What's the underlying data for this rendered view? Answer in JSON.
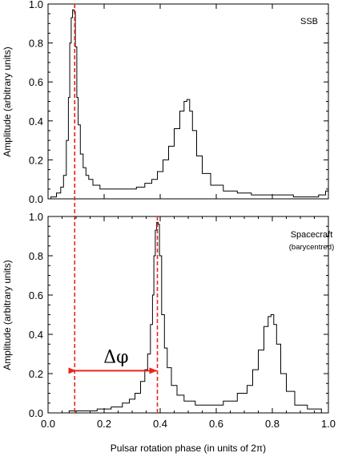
{
  "chart_data": [
    {
      "type": "line",
      "panel": "top",
      "annotation": "SSB",
      "ylabel": "Amplitude (arbitrary units)",
      "xlim": [
        0.0,
        1.0
      ],
      "ylim": [
        0.0,
        1.0
      ],
      "y_ticks": [
        "0.0",
        "0.2",
        "0.4",
        "0.6",
        "0.8",
        "1.0"
      ],
      "series": [
        {
          "x": [
            0.0,
            0.02,
            0.04,
            0.05,
            0.06,
            0.07,
            0.075,
            0.08,
            0.085,
            0.09,
            0.095,
            0.1,
            0.105,
            0.11,
            0.12,
            0.13,
            0.14,
            0.15,
            0.17,
            0.2,
            0.25,
            0.3,
            0.33,
            0.36,
            0.38,
            0.4,
            0.42,
            0.44,
            0.46,
            0.48,
            0.49,
            0.5,
            0.51,
            0.52,
            0.54,
            0.56,
            0.6,
            0.65,
            0.7,
            0.75,
            0.8,
            0.85,
            0.9,
            0.95,
            0.98,
            1.0
          ],
          "y": [
            0.0,
            0.01,
            0.03,
            0.06,
            0.12,
            0.3,
            0.52,
            0.8,
            0.93,
            0.97,
            0.96,
            0.78,
            0.52,
            0.38,
            0.23,
            0.16,
            0.12,
            0.1,
            0.07,
            0.05,
            0.05,
            0.05,
            0.06,
            0.08,
            0.1,
            0.14,
            0.2,
            0.27,
            0.36,
            0.45,
            0.5,
            0.51,
            0.45,
            0.35,
            0.22,
            0.13,
            0.07,
            0.04,
            0.03,
            0.02,
            0.02,
            0.02,
            0.01,
            0.01,
            0.02,
            0.04
          ]
        }
      ],
      "marker_x": 0.095
    },
    {
      "type": "line",
      "panel": "bottom",
      "annotation": "Spacecraft",
      "annotation_sub": "(barycentred)",
      "xlabel": "Pulsar rotation phase (in units of 2π)",
      "ylabel": "Amplitude (arbitrary units)",
      "xlim": [
        0.0,
        1.0
      ],
      "ylim": [
        0.0,
        1.0
      ],
      "x_ticks": [
        "0.0",
        "0.2",
        "0.4",
        "0.6",
        "0.8",
        "1.0"
      ],
      "y_ticks": [
        "0.0",
        "0.2",
        "0.4",
        "0.6",
        "0.8",
        "1.0"
      ],
      "series": [
        {
          "x": [
            0.0,
            0.05,
            0.1,
            0.15,
            0.2,
            0.25,
            0.28,
            0.3,
            0.32,
            0.34,
            0.35,
            0.36,
            0.37,
            0.375,
            0.38,
            0.385,
            0.39,
            0.395,
            0.4,
            0.41,
            0.42,
            0.43,
            0.45,
            0.47,
            0.5,
            0.55,
            0.6,
            0.65,
            0.7,
            0.72,
            0.74,
            0.76,
            0.78,
            0.79,
            0.8,
            0.81,
            0.82,
            0.84,
            0.86,
            0.9,
            0.95,
            1.0
          ],
          "y": [
            0.0,
            0.0,
            0.01,
            0.01,
            0.02,
            0.03,
            0.05,
            0.07,
            0.1,
            0.16,
            0.22,
            0.3,
            0.45,
            0.6,
            0.8,
            0.93,
            0.97,
            0.96,
            0.8,
            0.5,
            0.33,
            0.23,
            0.14,
            0.09,
            0.06,
            0.04,
            0.04,
            0.06,
            0.1,
            0.14,
            0.22,
            0.32,
            0.44,
            0.49,
            0.5,
            0.45,
            0.35,
            0.2,
            0.11,
            0.04,
            0.02,
            0.0
          ]
        }
      ],
      "marker_x": 0.39,
      "phase_shift_label": "Δφ",
      "phase_shift_from": 0.095,
      "phase_shift_to": 0.39,
      "phase_shift_y": 0.215
    }
  ]
}
